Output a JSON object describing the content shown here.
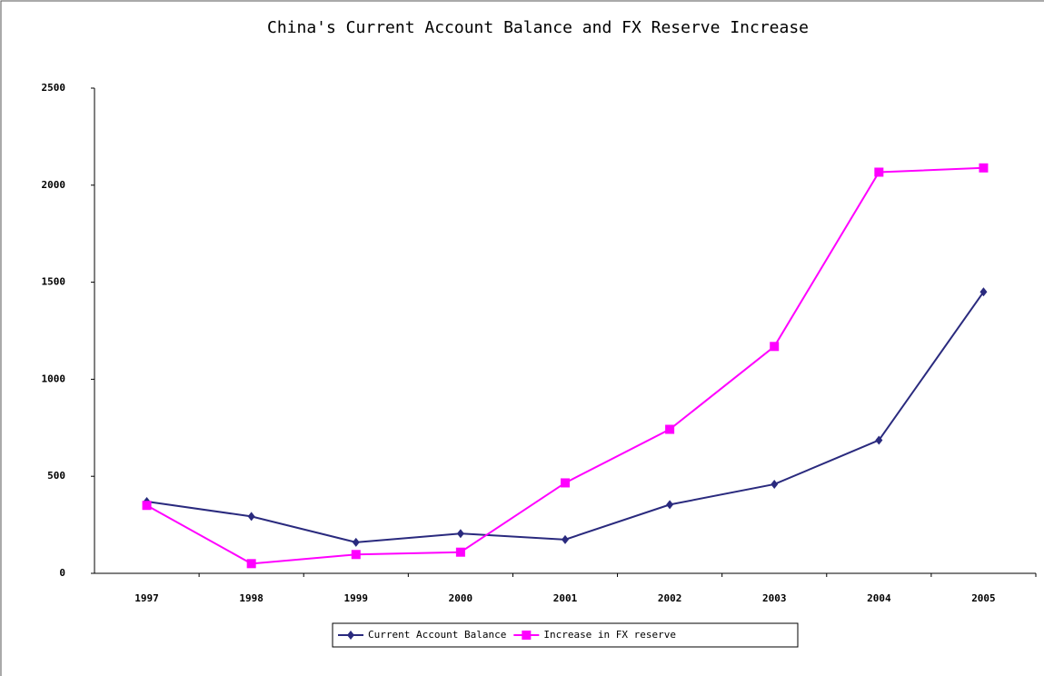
{
  "chart_data": {
    "type": "line",
    "title": "China's Current Account Balance and FX Reserve Increase",
    "categories": [
      "1997",
      "1998",
      "1999",
      "2000",
      "2001",
      "2002",
      "2003",
      "2004",
      "2005"
    ],
    "series": [
      {
        "name": "Current Account Balance",
        "color": "#2a2a7e",
        "marker": "diamond",
        "values": [
          370,
          293,
          160,
          205,
          174,
          354,
          459,
          686,
          1450
        ]
      },
      {
        "name": "Increase in FX reserve",
        "color": "#ff00ff",
        "marker": "square",
        "values": [
          350,
          50,
          97,
          109,
          466,
          742,
          1169,
          2067,
          2089
        ]
      }
    ],
    "ylim": [
      0,
      2500
    ],
    "yticks": [
      0,
      500,
      1000,
      1500,
      2000,
      2500
    ],
    "grid": false,
    "legend": "bottom"
  }
}
